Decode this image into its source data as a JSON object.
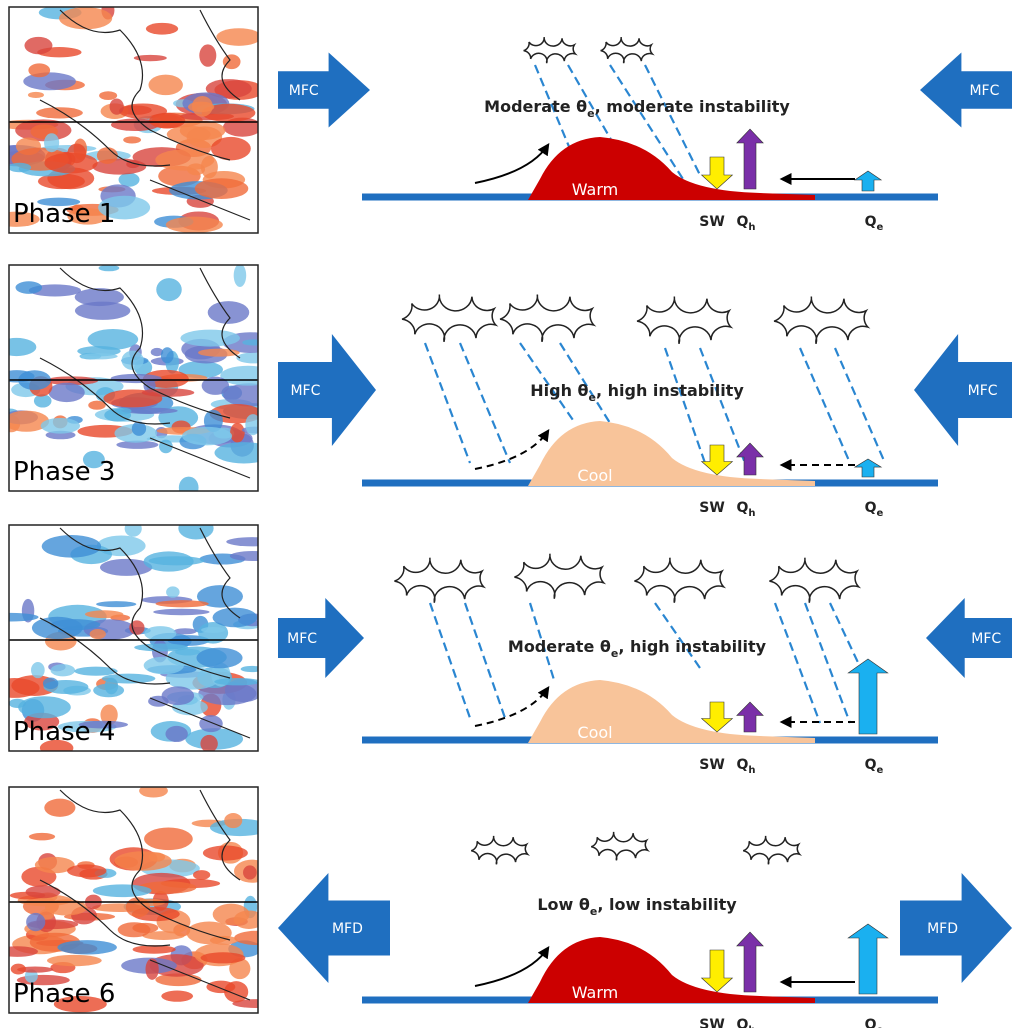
{
  "panels": [
    {
      "phase": "Phase 1",
      "left_arrow": "MFC",
      "right_arrow": "MFC",
      "heading": {
        "text": "Moderate θ",
        "sub": "e",
        "rest": ", moderate instability"
      },
      "land_label": "Warm",
      "sw": "SW",
      "qh": {
        "text": "Q",
        "sub": "h"
      },
      "qe": {
        "text": "Q",
        "sub": "e"
      }
    },
    {
      "phase": "Phase 3",
      "left_arrow": "MFC",
      "right_arrow": "MFC",
      "heading": {
        "text": "High θ",
        "sub": "e",
        "rest": ", high instability"
      },
      "land_label": "Cool",
      "sw": "SW",
      "qh": {
        "text": "Q",
        "sub": "h"
      },
      "qe": {
        "text": "Q",
        "sub": "e"
      }
    },
    {
      "phase": "Phase 4",
      "left_arrow": "MFC",
      "right_arrow": "MFC",
      "heading": {
        "text": "Moderate θ",
        "sub": "e",
        "rest": ", high instability"
      },
      "land_label": "Cool",
      "sw": "SW",
      "qh": {
        "text": "Q",
        "sub": "h"
      },
      "qe": {
        "text": "Q",
        "sub": "e"
      }
    },
    {
      "phase": "Phase 6",
      "left_arrow": "MFD",
      "right_arrow": "MFD",
      "heading": {
        "text": "Low θ",
        "sub": "e",
        "rest": ", low instability"
      },
      "land_label": "Warm",
      "sw": "SW",
      "qh": {
        "text": "Q",
        "sub": "h"
      },
      "qe": {
        "text": "Q",
        "sub": "e"
      }
    }
  ]
}
